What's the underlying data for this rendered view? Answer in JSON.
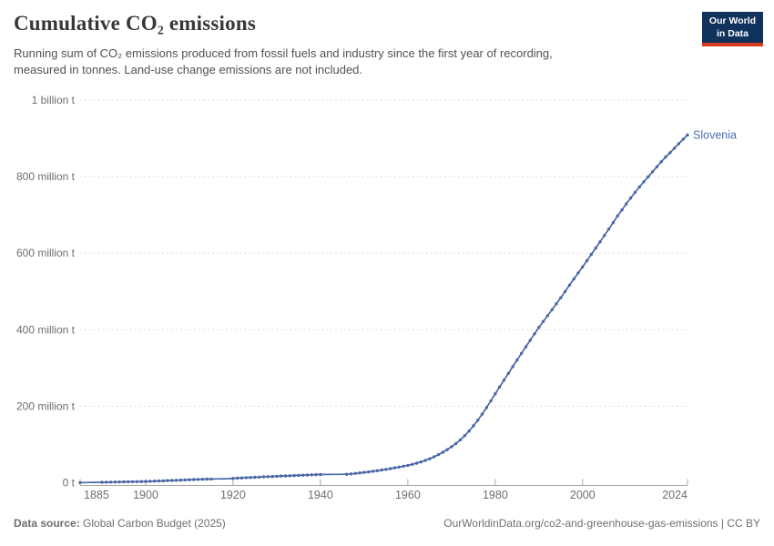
{
  "header": {
    "title": "Cumulative CO₂ emissions",
    "subtitle_line1": "Running sum of CO₂ emissions produced from fossil fuels and industry since the first year of recording,",
    "subtitle_line2": "measured in tonnes. Land-use change emissions are not included."
  },
  "logo": {
    "line1": "Our World",
    "line2": "in Data",
    "bg_color": "#11325D",
    "accent_color": "#D6391F",
    "text_color": "#ffffff"
  },
  "footer": {
    "source_label": "Data source:",
    "source_text": " Global Carbon Budget (2025)",
    "right_text": "OurWorldinData.org/co2-and-greenhouse-gas-emissions | CC BY"
  },
  "chart_data": {
    "type": "line",
    "title": "Cumulative CO₂ emissions",
    "entity": "Slovenia",
    "ylabel": "",
    "xlabel": "",
    "unit": "tonnes",
    "values_unit": "million tonnes",
    "line_color": "#4A67A6",
    "entity_label_color": "#4A6FB1",
    "grid": "dashed horizontal",
    "legend_position": "end-of-line label",
    "xlim": [
      1885,
      2024
    ],
    "ylim": [
      0,
      1000
    ],
    "x_ticks": [
      1885,
      1900,
      1920,
      1940,
      1960,
      1980,
      2000,
      2024
    ],
    "y_ticks": [
      {
        "value": 0,
        "label": "0 t"
      },
      {
        "value": 200,
        "label": "200 million t"
      },
      {
        "value": 400,
        "label": "400 million t"
      },
      {
        "value": 600,
        "label": "600 million t"
      },
      {
        "value": 800,
        "label": "800 million t"
      },
      {
        "value": 1000,
        "label": "1 billion t"
      }
    ],
    "no_marker_years": [
      1886,
      1887,
      1888,
      1889,
      1916,
      1917,
      1918,
      1919,
      1941,
      1942,
      1943,
      1944,
      1945
    ],
    "x": [
      1885,
      1886,
      1887,
      1888,
      1889,
      1890,
      1891,
      1892,
      1893,
      1894,
      1895,
      1896,
      1897,
      1898,
      1899,
      1900,
      1901,
      1902,
      1903,
      1904,
      1905,
      1906,
      1907,
      1908,
      1909,
      1910,
      1911,
      1912,
      1913,
      1914,
      1915,
      1916,
      1917,
      1918,
      1919,
      1920,
      1921,
      1922,
      1923,
      1924,
      1925,
      1926,
      1927,
      1928,
      1929,
      1930,
      1931,
      1932,
      1933,
      1934,
      1935,
      1936,
      1937,
      1938,
      1939,
      1940,
      1941,
      1942,
      1943,
      1944,
      1945,
      1946,
      1947,
      1948,
      1949,
      1950,
      1951,
      1952,
      1953,
      1954,
      1955,
      1956,
      1957,
      1958,
      1959,
      1960,
      1961,
      1962,
      1963,
      1964,
      1965,
      1966,
      1967,
      1968,
      1969,
      1970,
      1971,
      1972,
      1973,
      1974,
      1975,
      1976,
      1977,
      1978,
      1979,
      1980,
      1981,
      1982,
      1983,
      1984,
      1985,
      1986,
      1987,
      1988,
      1989,
      1990,
      1991,
      1992,
      1993,
      1994,
      1995,
      1996,
      1997,
      1998,
      1999,
      2000,
      2001,
      2002,
      2003,
      2004,
      2005,
      2006,
      2007,
      2008,
      2009,
      2010,
      2011,
      2012,
      2013,
      2014,
      2015,
      2016,
      2017,
      2018,
      2019,
      2020,
      2021,
      2022,
      2023,
      2024
    ],
    "values": [
      0.3,
      0.5,
      0.7,
      0.9,
      1.1,
      1.3,
      1.5,
      1.7,
      1.9,
      2.1,
      2.3,
      2.5,
      2.7,
      2.9,
      3.1,
      3.3,
      3.8,
      4.2,
      4.7,
      5.1,
      5.6,
      6.0,
      6.5,
      6.9,
      7.4,
      7.8,
      8.3,
      8.7,
      9.2,
      9.5,
      9.8,
      10.0,
      10.2,
      10.4,
      10.7,
      11.5,
      12.1,
      12.6,
      13.2,
      13.7,
      14.3,
      14.8,
      15.4,
      15.9,
      16.5,
      17.0,
      17.5,
      17.9,
      18.4,
      18.8,
      19.3,
      19.7,
      20.2,
      20.6,
      21.1,
      21.5,
      21.6,
      21.7,
      21.8,
      21.9,
      22.0,
      22.2,
      23.1,
      24.3,
      25.6,
      27.0,
      28.4,
      29.9,
      31.5,
      33.2,
      35.0,
      36.9,
      38.9,
      41.0,
      43.2,
      45.5,
      48.1,
      51.1,
      54.5,
      58.4,
      62.8,
      67.8,
      73.4,
      79.6,
      86.5,
      94.1,
      102.6,
      112.1,
      122.9,
      135.1,
      148.6,
      163.4,
      179.4,
      196.4,
      214.2,
      232.5,
      250.5,
      268.3,
      285.9,
      303.4,
      320.8,
      338.1,
      355.3,
      372.4,
      389.4,
      405.9,
      421.4,
      436.7,
      452.1,
      467.7,
      483.5,
      499.7,
      516.2,
      532.5,
      548.4,
      564.4,
      580.6,
      597.0,
      613.3,
      629.8,
      646.4,
      663.1,
      680.0,
      697.2,
      713.0,
      728.9,
      744.0,
      758.8,
      773.0,
      786.5,
      799.5,
      812.5,
      825.8,
      838.8,
      851.3,
      862.3,
      874.3,
      886.0,
      897.5,
      909.0
    ]
  }
}
